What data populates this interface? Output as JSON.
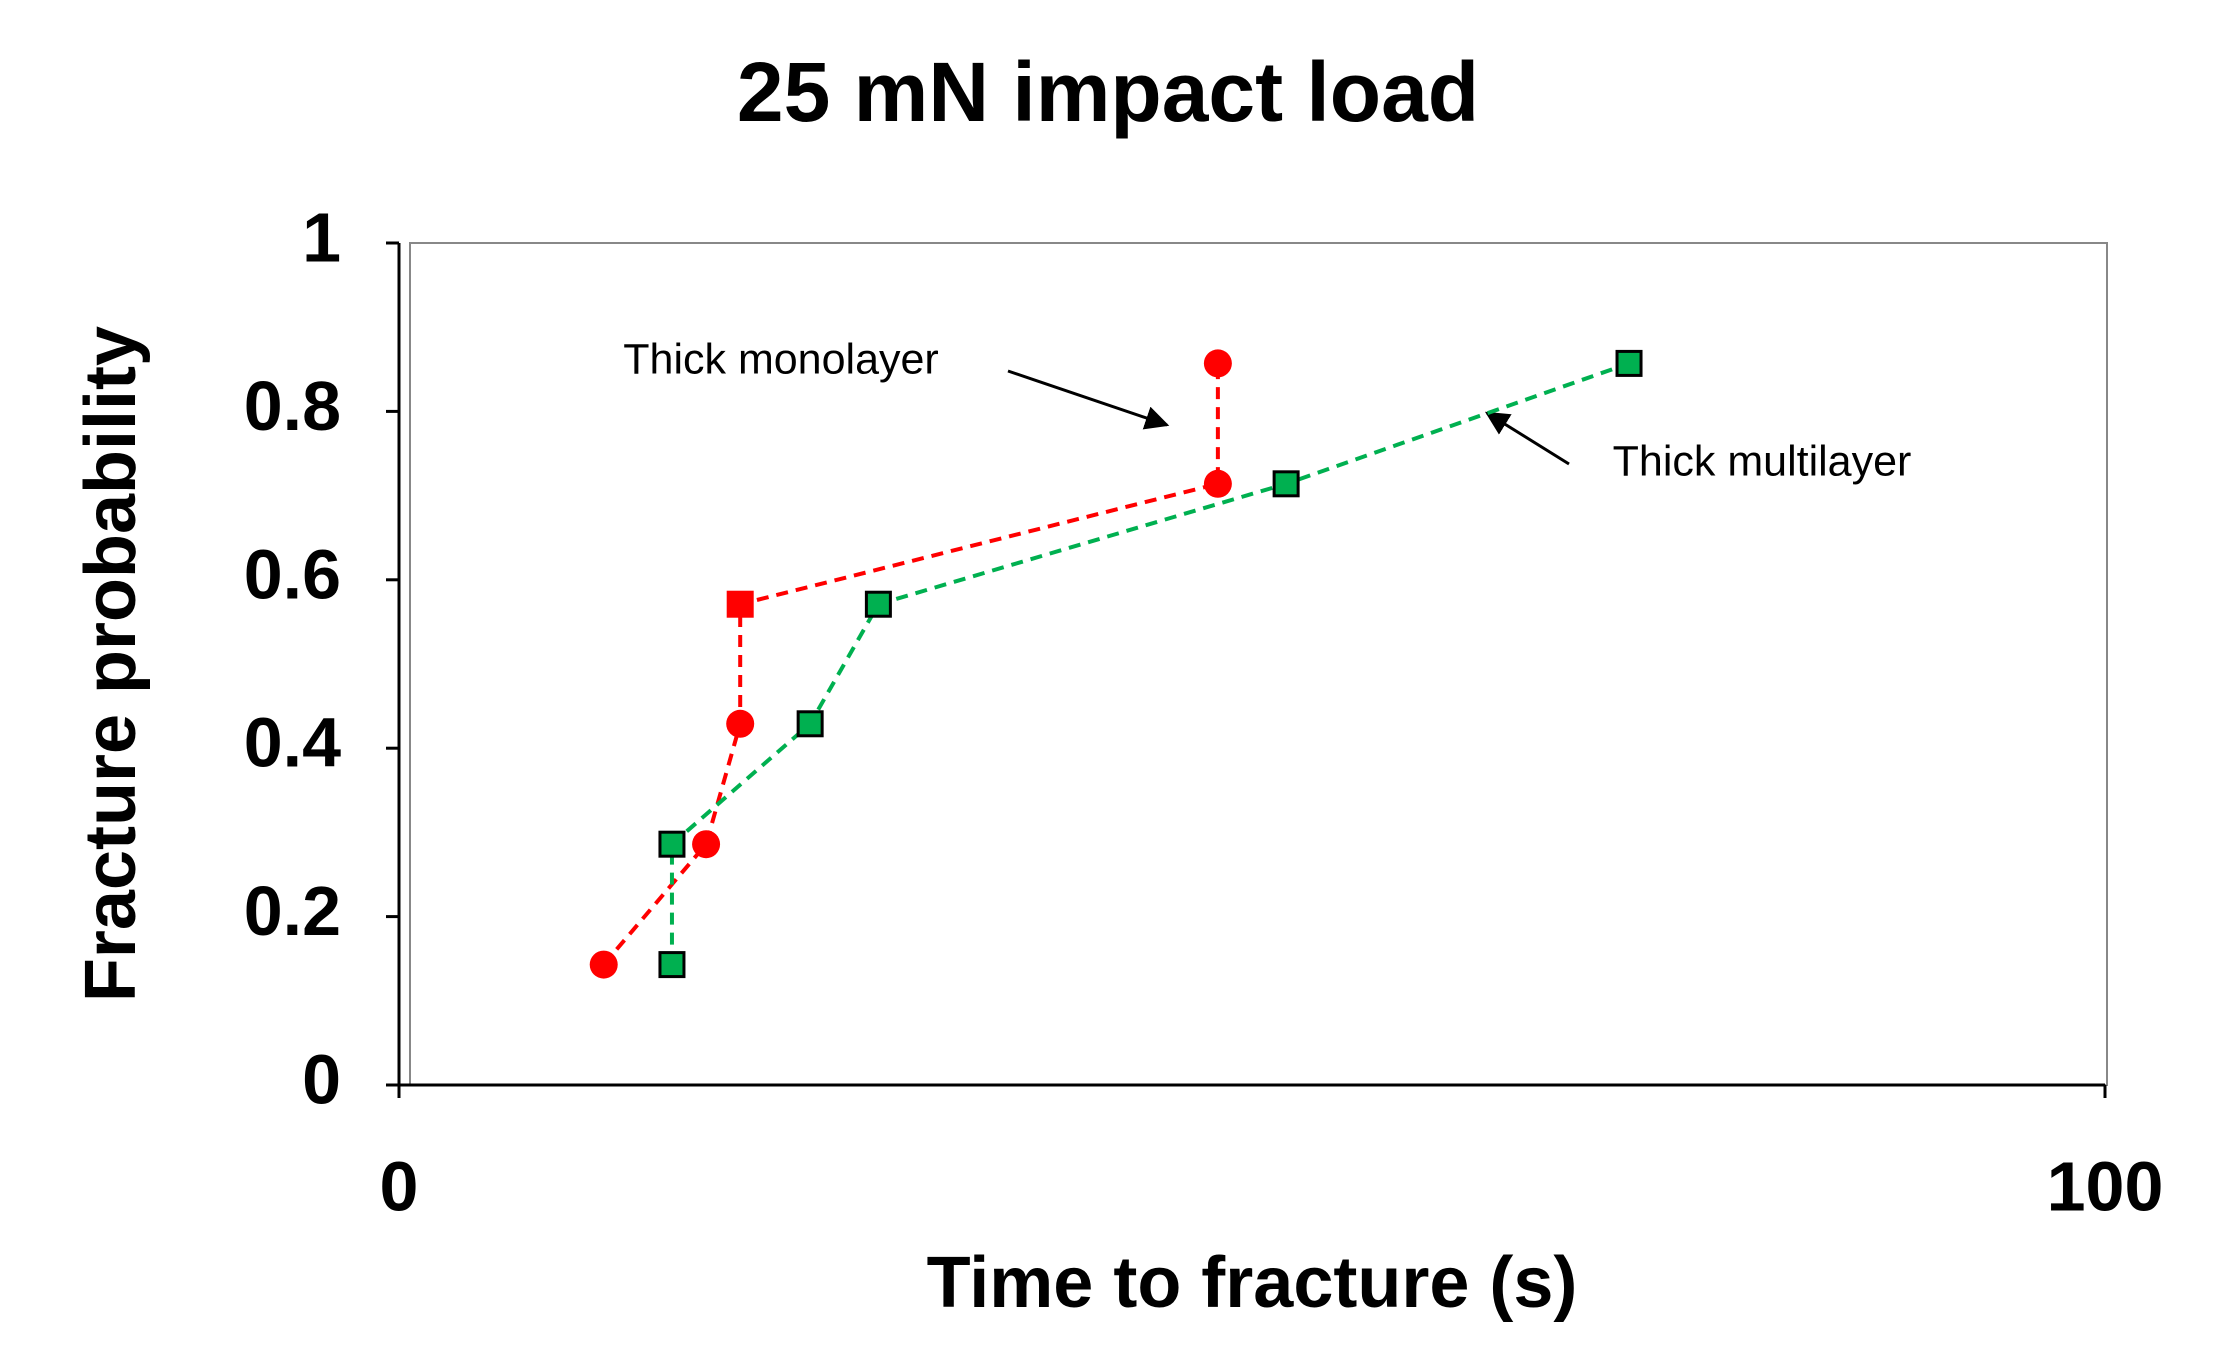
{
  "chart_data": {
    "type": "line",
    "title": "25 mN impact load",
    "x_label": "Time to fracture (s)",
    "y_label": "Fracture probability",
    "xlim": [
      0,
      100
    ],
    "xticks": [
      0,
      100
    ],
    "ylim": [
      0,
      1
    ],
    "yticks": [
      0,
      0.2,
      0.4,
      0.6,
      0.8,
      1
    ],
    "grid": false,
    "series": [
      {
        "name": "Thick monolayer",
        "color": "#ff0000",
        "marker": "circle",
        "markers": [
          "circle",
          "circle",
          "circle",
          "square",
          "circle",
          "circle"
        ],
        "x": [
          12,
          18,
          20,
          20,
          48,
          48
        ],
        "values": [
          0.143,
          0.286,
          0.429,
          0.571,
          0.714,
          0.857
        ]
      },
      {
        "name": "Thick multilayer",
        "color": "#00b050",
        "marker": "square",
        "x": [
          16,
          16,
          24.1,
          28.1,
          52,
          72.1
        ],
        "values": [
          0.143,
          0.286,
          0.429,
          0.571,
          0.714,
          0.857
        ]
      }
    ]
  }
}
